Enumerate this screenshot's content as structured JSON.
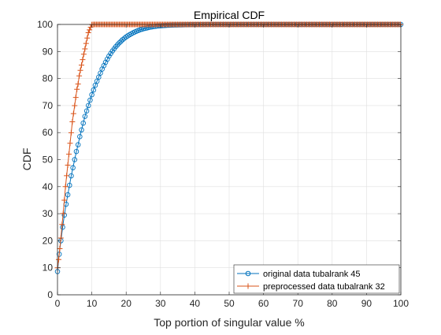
{
  "chart_data": {
    "type": "line",
    "title": "Empirical CDF",
    "xlabel": "Top portion of singular value %",
    "ylabel": "CDF",
    "xlim": [
      0,
      100
    ],
    "ylim": [
      0,
      100
    ],
    "xticks": [
      0,
      10,
      20,
      30,
      40,
      50,
      60,
      70,
      80,
      90,
      100
    ],
    "yticks": [
      0,
      10,
      20,
      30,
      40,
      50,
      60,
      70,
      80,
      90,
      100
    ],
    "grid": true,
    "legend_position": "bottom-right",
    "series": [
      {
        "name": "original data tubalrank 45",
        "color": "#0072BD",
        "marker": "circle",
        "x": [
          0,
          0.5,
          1,
          1.5,
          2,
          2.5,
          3,
          3.5,
          4,
          4.5,
          5,
          5.5,
          6,
          6.5,
          7,
          7.5,
          8,
          8.5,
          9,
          9.5,
          10,
          11,
          12,
          13,
          14,
          15,
          16,
          17,
          18,
          19,
          20,
          21,
          22,
          23,
          24,
          25,
          26,
          27,
          28,
          29,
          30,
          32,
          34,
          36,
          38,
          40,
          45,
          50,
          55,
          60,
          65,
          70,
          75,
          80,
          85,
          90,
          95,
          100
        ],
        "values": [
          8.6,
          15,
          20,
          25,
          29.5,
          33.5,
          37,
          40.5,
          44,
          47,
          50,
          53,
          55.5,
          58.5,
          61,
          63.5,
          66,
          68,
          70,
          72,
          74,
          77.5,
          80.5,
          83.5,
          86,
          88.3,
          90.2,
          91.8,
          93.2,
          94.4,
          95.4,
          96.2,
          96.9,
          97.5,
          98,
          98.4,
          98.7,
          99,
          99.2,
          99.4,
          99.5,
          99.7,
          99.8,
          99.85,
          99.9,
          99.95,
          100,
          100,
          100,
          100,
          100,
          100,
          100,
          100,
          100,
          100,
          100,
          100
        ]
      },
      {
        "name": "preprocessed data tubalrank 32",
        "color": "#D95319",
        "marker": "plus",
        "x": [
          0,
          0.33,
          0.66,
          1,
          1.33,
          1.66,
          2,
          2.33,
          2.66,
          3,
          3.33,
          3.66,
          4,
          4.33,
          4.66,
          5,
          5.33,
          5.66,
          6,
          6.33,
          6.66,
          7,
          7.33,
          7.66,
          8,
          8.33,
          8.66,
          9,
          9.33,
          9.66,
          10,
          100
        ],
        "values": [
          10,
          13,
          17,
          21,
          26,
          30,
          35,
          40,
          44,
          48,
          52,
          56,
          60,
          64,
          67,
          70,
          73,
          76,
          78,
          81,
          83,
          85,
          87,
          89,
          91,
          93,
          95,
          97,
          98,
          99,
          100,
          100
        ]
      }
    ]
  }
}
